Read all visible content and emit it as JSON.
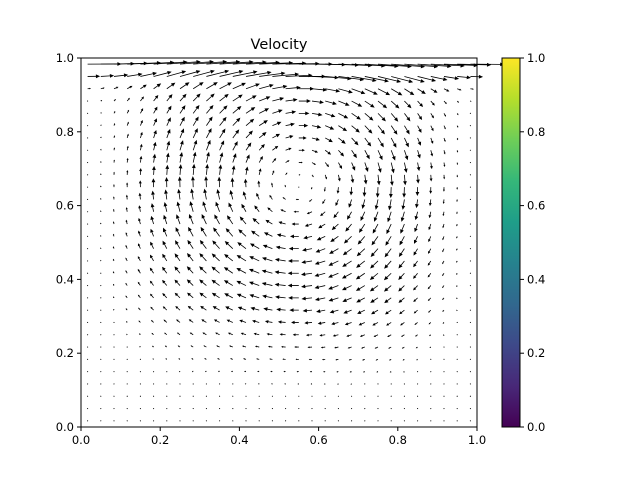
{
  "chart_data": {
    "type": "quiver",
    "title": "Velocity",
    "xlabel": "",
    "ylabel": "",
    "xlim": [
      0.0,
      1.0
    ],
    "ylim": [
      0.0,
      1.0
    ],
    "grid": false,
    "x_ticks": [
      "0.0",
      "0.2",
      "0.4",
      "0.6",
      "0.8",
      "1.0"
    ],
    "y_ticks": [
      "0.0",
      "0.2",
      "0.4",
      "0.6",
      "0.8",
      "1.0"
    ],
    "field": {
      "description": "lid-driven cavity flow, single clockwise vortex",
      "grid_n": 30,
      "lid_velocity": 1.0,
      "vortex_center": [
        0.55,
        0.66
      ]
    },
    "arrow_color": "#000000",
    "colorbar": {
      "colormap": "viridis",
      "range": [
        0.0,
        1.0
      ],
      "ticks": [
        "0.0",
        "0.2",
        "0.4",
        "0.6",
        "0.8",
        "1.0"
      ],
      "colors": [
        "#440154",
        "#482878",
        "#3e4989",
        "#31688e",
        "#26828e",
        "#1f9e89",
        "#35b779",
        "#6ece58",
        "#b5de2b",
        "#fde725"
      ]
    }
  }
}
